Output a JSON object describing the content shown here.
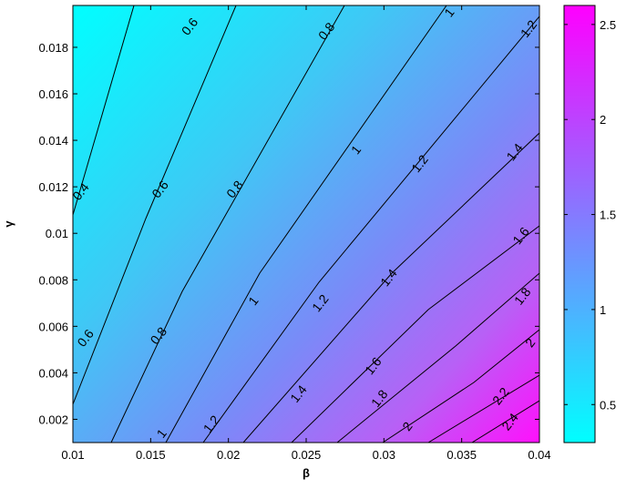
{
  "chart_data": {
    "type": "heatmap",
    "subtype": "filled-contour",
    "title": "",
    "xlabel": "β",
    "ylabel": "γ",
    "xlim": [
      0.01,
      0.04
    ],
    "ylim": [
      0.001,
      0.0198
    ],
    "x_ticks": [
      "0.01",
      "0.015",
      "0.02",
      "0.025",
      "0.03",
      "0.035",
      "0.04"
    ],
    "y_ticks": [
      "0.002",
      "0.004",
      "0.006",
      "0.008",
      "0.01",
      "0.012",
      "0.014",
      "0.016",
      "0.018"
    ],
    "colorbar": {
      "range": [
        0.3,
        2.6
      ],
      "ticks": [
        "0.5",
        "1",
        "1.5",
        "2",
        "2.5"
      ],
      "colormap": [
        "#00ffff",
        "#ff00ff"
      ]
    },
    "contour_levels": [
      "0.4",
      "0.6",
      "0.8",
      "1",
      "1.2",
      "1.4",
      "1.6",
      "1.8",
      "2",
      "2.2",
      "2.4"
    ],
    "contour_labels": [
      {
        "text": "0.4",
        "x": 0.0105,
        "y": 0.0118
      },
      {
        "text": "0.6",
        "x": 0.0108,
        "y": 0.0055
      },
      {
        "text": "0.6",
        "x": 0.0156,
        "y": 0.0119
      },
      {
        "text": "0.6",
        "x": 0.0175,
        "y": 0.0189
      },
      {
        "text": "0.8",
        "x": 0.0155,
        "y": 0.0056
      },
      {
        "text": "0.8",
        "x": 0.0204,
        "y": 0.0119
      },
      {
        "text": "0.8",
        "x": 0.0263,
        "y": 0.0187
      },
      {
        "text": "1",
        "x": 0.0157,
        "y": 0.0014
      },
      {
        "text": "1",
        "x": 0.0216,
        "y": 0.0071
      },
      {
        "text": "1",
        "x": 0.0282,
        "y": 0.0136
      },
      {
        "text": "1",
        "x": 0.0342,
        "y": 0.0195
      },
      {
        "text": "1.2",
        "x": 0.0189,
        "y": 0.0018
      },
      {
        "text": "1.2",
        "x": 0.0259,
        "y": 0.007
      },
      {
        "text": "1.2",
        "x": 0.0323,
        "y": 0.013
      },
      {
        "text": "1.2",
        "x": 0.0393,
        "y": 0.0188
      },
      {
        "text": "1.4",
        "x": 0.0245,
        "y": 0.0031
      },
      {
        "text": "1.4",
        "x": 0.0303,
        "y": 0.0081
      },
      {
        "text": "1.4",
        "x": 0.0384,
        "y": 0.0135
      },
      {
        "text": "1.6",
        "x": 0.0293,
        "y": 0.0043
      },
      {
        "text": "1.6",
        "x": 0.0388,
        "y": 0.0099
      },
      {
        "text": "1.8",
        "x": 0.0297,
        "y": 0.0029
      },
      {
        "text": "1.8",
        "x": 0.0389,
        "y": 0.0073
      },
      {
        "text": "2",
        "x": 0.0315,
        "y": 0.0017
      },
      {
        "text": "2",
        "x": 0.0394,
        "y": 0.0053
      },
      {
        "text": "2.2",
        "x": 0.0375,
        "y": 0.003
      },
      {
        "text": "2.4",
        "x": 0.0381,
        "y": 0.0019
      }
    ]
  }
}
